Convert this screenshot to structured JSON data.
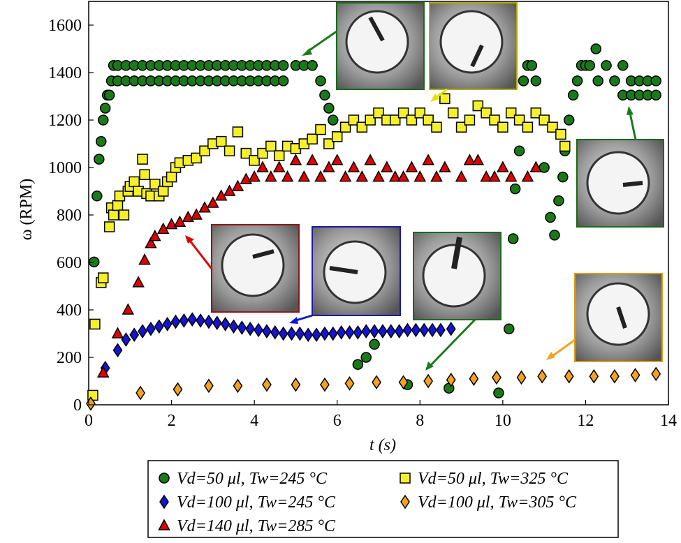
{
  "chart_data": {
    "type": "scatter",
    "xlabel": "t (s)",
    "ylabel": "ω (RPM)",
    "xlim": [
      0,
      14
    ],
    "xticks": [
      0,
      2,
      4,
      6,
      8,
      10,
      12,
      14
    ],
    "ylim": [
      0,
      1700
    ],
    "yticks": [
      0,
      200,
      400,
      600,
      800,
      1000,
      1200,
      1400,
      1600
    ],
    "series": [
      {
        "name": "Vd=50 μl, Tw=245 °C",
        "color": "#1a7a1a",
        "marker": "circle",
        "x": [
          0.13,
          0.2,
          0.25,
          0.3,
          0.35,
          0.4,
          0.45,
          0.5,
          0.55,
          0.6,
          0.7,
          0.7,
          0.9,
          0.9,
          1.1,
          1.1,
          1.3,
          1.3,
          1.5,
          1.5,
          1.7,
          1.7,
          1.9,
          1.9,
          2.1,
          2.1,
          2.3,
          2.3,
          2.5,
          2.5,
          2.7,
          2.7,
          2.9,
          2.9,
          3.1,
          3.1,
          3.3,
          3.3,
          3.5,
          3.5,
          3.7,
          3.7,
          3.9,
          3.9,
          4.1,
          4.1,
          4.3,
          4.3,
          4.5,
          4.5,
          4.7,
          4.7,
          5.0,
          5.2,
          5.4,
          5.6,
          5.7,
          5.8,
          5.9,
          6.5,
          6.7,
          6.9,
          7.7,
          8.7,
          9.9,
          10.15,
          10.25,
          10.3,
          10.4,
          10.5,
          10.6,
          10.7,
          10.8,
          11.0,
          11.15,
          11.25,
          11.35,
          11.45,
          11.5,
          11.6,
          11.7,
          11.8,
          11.9,
          12.0,
          12.1,
          12.25,
          12.3,
          12.5,
          12.7,
          12.9,
          12.9,
          13.1,
          13.1,
          13.3,
          13.3,
          13.5,
          13.5,
          13.7,
          13.7
        ],
        "values": [
          602,
          880,
          1035,
          1110,
          1200,
          1250,
          1305,
          1305,
          1365,
          1430,
          1430,
          1365,
          1430,
          1365,
          1430,
          1365,
          1430,
          1365,
          1430,
          1365,
          1430,
          1365,
          1430,
          1365,
          1430,
          1365,
          1430,
          1365,
          1430,
          1365,
          1430,
          1365,
          1430,
          1365,
          1430,
          1365,
          1430,
          1365,
          1430,
          1365,
          1430,
          1365,
          1430,
          1365,
          1430,
          1365,
          1430,
          1365,
          1430,
          1365,
          1430,
          1365,
          1430,
          1430,
          1430,
          1365,
          1305,
          1250,
          1200,
          170,
          200,
          255,
          85,
          70,
          50,
          320,
          700,
          910,
          1070,
          1365,
          1430,
          1430,
          1365,
          1000,
          790,
          715,
          860,
          960,
          1070,
          1200,
          1305,
          1365,
          1430,
          1430,
          1430,
          1500,
          1365,
          1430,
          1365,
          1430,
          1305,
          1365,
          1305,
          1365,
          1305,
          1365,
          1305,
          1365,
          1305
        ]
      },
      {
        "name": "Vd=100 μl, Tw=245 °C",
        "color": "#1414d2",
        "marker": "diamond",
        "x": [
          0.4,
          0.7,
          0.9,
          1.1,
          1.3,
          1.5,
          1.7,
          1.9,
          2.1,
          2.3,
          2.5,
          2.7,
          2.9,
          3.1,
          3.3,
          3.5,
          3.7,
          3.9,
          4.1,
          4.3,
          4.5,
          4.7,
          4.9,
          5.1,
          5.3,
          5.5,
          5.7,
          5.9,
          6.1,
          6.3,
          6.5,
          6.7,
          6.9,
          7.1,
          7.3,
          7.5,
          7.7,
          7.9,
          8.1,
          8.3,
          8.5,
          8.75
        ],
        "values": [
          155,
          230,
          275,
          295,
          310,
          320,
          330,
          340,
          350,
          355,
          360,
          355,
          350,
          345,
          340,
          330,
          325,
          320,
          315,
          310,
          305,
          300,
          300,
          300,
          295,
          295,
          300,
          300,
          305,
          305,
          305,
          310,
          310,
          310,
          310,
          310,
          315,
          315,
          315,
          315,
          315,
          320
        ]
      },
      {
        "name": "Vd=140 μl, Tw=285 °C",
        "color": "#e00000",
        "marker": "triangle",
        "x": [
          0.35,
          0.7,
          0.95,
          1.2,
          1.35,
          1.5,
          1.6,
          1.8,
          2.0,
          2.2,
          2.4,
          2.6,
          2.8,
          3.0,
          3.2,
          3.4,
          3.6,
          3.8,
          4.0,
          4.2,
          4.4,
          4.6,
          4.8,
          5.0,
          5.2,
          5.4,
          5.6,
          5.8,
          6.0,
          6.2,
          6.4,
          6.6,
          6.8,
          7.0,
          7.2,
          7.4,
          7.6,
          7.8,
          8.0,
          8.2,
          8.4,
          8.6,
          9.0,
          9.2,
          9.4,
          9.6,
          9.8,
          10.0,
          10.2,
          10.6,
          10.8
        ],
        "values": [
          135,
          300,
          400,
          515,
          610,
          680,
          710,
          740,
          760,
          770,
          790,
          800,
          830,
          850,
          880,
          900,
          920,
          950,
          960,
          1000,
          960,
          1000,
          960,
          1030,
          960,
          1030,
          960,
          1000,
          1030,
          960,
          1000,
          960,
          1030,
          960,
          1000,
          960,
          960,
          1000,
          960,
          1030,
          960,
          1000,
          960,
          1030,
          1030,
          960,
          960,
          1000,
          960,
          960,
          1000
        ]
      },
      {
        "name": "Vd=50 μl, Tw=325 °C",
        "color": "#f5f02a",
        "marker": "square",
        "x": [
          0.1,
          0.15,
          0.3,
          0.35,
          0.5,
          0.55,
          0.6,
          0.7,
          0.75,
          0.85,
          0.95,
          1.0,
          1.1,
          1.2,
          1.3,
          1.35,
          1.4,
          1.5,
          1.6,
          1.7,
          1.8,
          1.9,
          2.0,
          2.1,
          2.2,
          2.4,
          2.6,
          2.8,
          3.0,
          3.2,
          3.4,
          3.6,
          3.8,
          4.0,
          4.2,
          4.4,
          4.6,
          4.8,
          5.0,
          5.2,
          5.4,
          5.6,
          5.8,
          6.0,
          6.2,
          6.4,
          6.6,
          6.8,
          7.0,
          7.2,
          7.4,
          7.6,
          7.8,
          8.0,
          8.2,
          8.4,
          8.6,
          8.8,
          9.0,
          9.2,
          9.4,
          9.6,
          9.8,
          10.0,
          10.2,
          10.4,
          10.6,
          10.8,
          11.0,
          11.2,
          11.4,
          11.5
        ],
        "values": [
          40,
          340,
          515,
          535,
          750,
          830,
          800,
          840,
          880,
          800,
          900,
          920,
          940,
          900,
          1035,
          970,
          890,
          880,
          930,
          880,
          900,
          940,
          960,
          1000,
          1020,
          1030,
          1040,
          1070,
          1100,
          1110,
          1070,
          1150,
          1060,
          1030,
          1060,
          1090,
          1050,
          1090,
          1080,
          1100,
          1120,
          1160,
          1100,
          1130,
          1170,
          1200,
          1170,
          1200,
          1230,
          1200,
          1200,
          1230,
          1200,
          1230,
          1200,
          1170,
          1290,
          1230,
          1170,
          1200,
          1260,
          1230,
          1200,
          1170,
          1230,
          1200,
          1170,
          1230,
          1200,
          1170,
          1140,
          1090
        ]
      },
      {
        "name": "Vd=100 μl, Tw=305 °C",
        "color": "#f5a21e",
        "marker": "diamond",
        "x": [
          0.05,
          1.25,
          2.15,
          2.9,
          3.6,
          4.3,
          5.0,
          5.7,
          6.3,
          6.95,
          7.6,
          8.2,
          8.75,
          9.3,
          9.85,
          10.45,
          10.95,
          11.6,
          12.2,
          12.7,
          13.2,
          13.7
        ],
        "values": [
          5,
          50,
          65,
          80,
          80,
          85,
          85,
          85,
          90,
          95,
          95,
          100,
          105,
          110,
          115,
          115,
          120,
          120,
          120,
          120,
          125,
          130
        ]
      }
    ]
  }
}
